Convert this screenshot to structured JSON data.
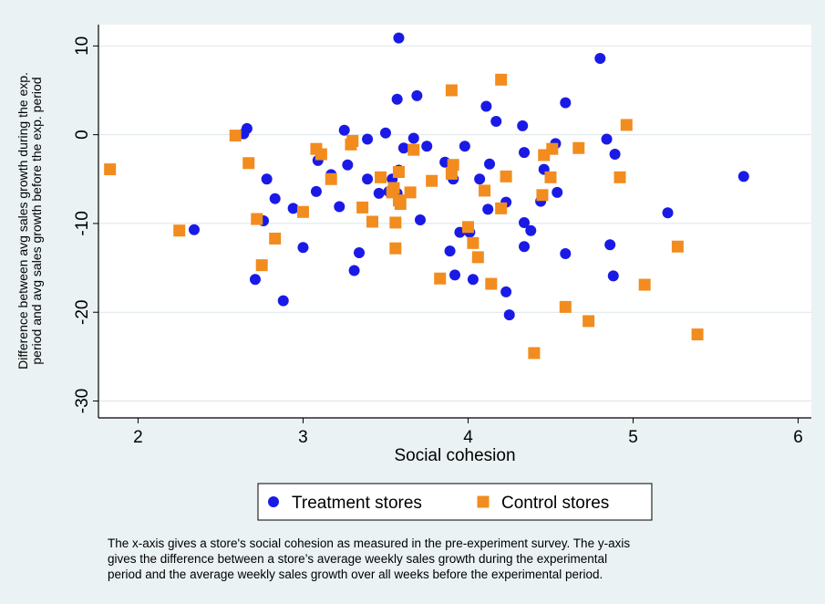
{
  "chart_data": {
    "type": "scatter",
    "xlabel": "Social cohesion",
    "ylabel": [
      "Difference between avg sales growth during the exp.",
      "period and avg sales growth before the exp. period"
    ],
    "xlim": [
      1.76,
      6.08
    ],
    "ylim": [
      -31.9,
      12.4
    ],
    "xticks": [
      2,
      3,
      4,
      5,
      6
    ],
    "yticks": [
      -30,
      -20,
      -10,
      0,
      10
    ],
    "grid": true,
    "legend": "bottom",
    "note": [
      "The x-axis gives a store's social cohesion as measured in the pre-experiment survey. The y-axis",
      "gives the difference between a store’s average weekly sales growth during the experimental",
      "period and the average weekly sales growth over all weeks before the experimental period."
    ],
    "series": [
      {
        "name": "Treatment stores",
        "color": "#1a1ae6",
        "marker": "circle",
        "x": [
          2.34,
          2.64,
          2.66,
          2.71,
          2.76,
          2.78,
          2.83,
          2.88,
          2.94,
          3.0,
          3.08,
          3.09,
          3.17,
          3.22,
          3.25,
          3.27,
          3.31,
          3.34,
          3.39,
          3.39,
          3.46,
          3.5,
          3.52,
          3.54,
          3.57,
          3.57,
          3.58,
          3.58,
          3.61,
          3.67,
          3.69,
          3.71,
          3.75,
          3.86,
          3.89,
          3.91,
          3.92,
          3.95,
          3.98,
          4.01,
          4.03,
          4.07,
          4.11,
          4.12,
          4.13,
          4.17,
          4.23,
          4.23,
          4.25,
          4.33,
          4.34,
          4.34,
          4.34,
          4.38,
          4.44,
          4.46,
          4.53,
          4.54,
          4.59,
          4.59,
          4.86,
          4.89,
          4.88,
          4.8,
          4.84,
          5.21,
          5.67
        ],
        "values": [
          -10.7,
          0.1,
          0.7,
          -16.3,
          -9.7,
          -5.0,
          -7.2,
          -18.7,
          -8.3,
          -12.7,
          -6.4,
          -2.9,
          -4.5,
          -8.1,
          0.5,
          -3.4,
          -15.3,
          -13.3,
          -0.5,
          -5.0,
          -6.6,
          0.2,
          -6.4,
          -5.0,
          -6.6,
          4.0,
          10.9,
          -4.0,
          -1.5,
          -0.4,
          4.4,
          -9.6,
          -1.3,
          -3.1,
          -13.1,
          -5.0,
          -15.8,
          -11.0,
          -1.3,
          -11.0,
          -16.3,
          -5.0,
          3.2,
          -8.4,
          -3.3,
          1.5,
          -7.6,
          -17.7,
          -20.3,
          1.0,
          -2.0,
          -9.9,
          -12.6,
          -10.8,
          -7.5,
          -3.9,
          -1.0,
          -6.5,
          3.6,
          -13.4,
          -12.4,
          -2.2,
          -15.9,
          8.6,
          -0.5,
          -8.8,
          -4.7
        ]
      },
      {
        "name": "Control stores",
        "color": "#f28c1e",
        "marker": "square",
        "x": [
          1.83,
          2.25,
          2.59,
          2.67,
          2.72,
          2.75,
          2.83,
          3.0,
          3.08,
          3.11,
          3.17,
          3.29,
          3.3,
          3.36,
          3.42,
          3.47,
          3.54,
          3.55,
          3.56,
          3.56,
          3.58,
          3.58,
          3.59,
          3.65,
          3.67,
          3.78,
          3.83,
          3.9,
          3.9,
          3.91,
          4.0,
          4.03,
          4.06,
          4.1,
          4.14,
          4.2,
          4.2,
          4.23,
          4.4,
          4.45,
          4.46,
          4.5,
          4.51,
          4.59,
          4.67,
          4.73,
          4.96,
          4.92,
          5.07,
          5.27,
          5.39
        ],
        "values": [
          -3.9,
          -10.8,
          -0.1,
          -3.2,
          -9.5,
          -14.7,
          -11.7,
          -8.7,
          -1.6,
          -2.2,
          -5.0,
          -1.1,
          -0.7,
          -8.2,
          -9.8,
          -4.8,
          -6.5,
          -6.0,
          -9.9,
          -12.8,
          -7.4,
          -4.2,
          -7.8,
          -6.5,
          -1.7,
          -5.2,
          -16.2,
          5.0,
          -4.4,
          -3.4,
          -10.4,
          -12.2,
          -13.8,
          -6.3,
          -16.8,
          6.2,
          -8.3,
          -4.7,
          -24.6,
          -6.8,
          -2.3,
          -4.8,
          -1.6,
          -19.4,
          -1.5,
          -21.0,
          1.1,
          -4.8,
          -16.9,
          -12.6,
          -22.5
        ]
      }
    ]
  }
}
